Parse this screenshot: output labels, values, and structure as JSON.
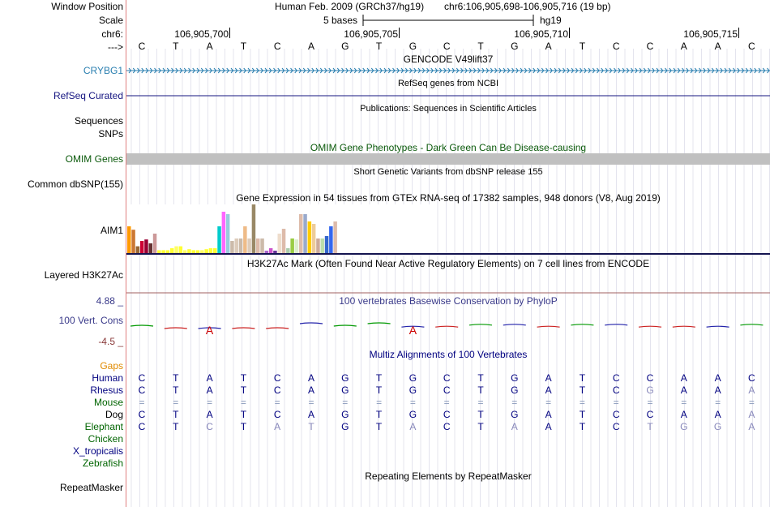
{
  "header": {
    "assembly": "Human Feb. 2009 (GRCh37/hg19)",
    "position": "chr6:106,905,698-106,905,716 (19 bp)",
    "scale_label": "5 bases",
    "scale_db": "hg19",
    "ticks": [
      "106,905,700",
      "106,905,705",
      "106,905,710",
      "106,905,715"
    ]
  },
  "labels": {
    "window_position": "Window Position",
    "scale": "Scale",
    "chrom": "chr6:",
    "strand": "--->",
    "crybg1": "CRYBG1",
    "refseq": "RefSeq Curated",
    "sequences": "Sequences",
    "snps": "SNPs",
    "omim": "OMIM Genes",
    "dbsnp": "Common dbSNP(155)",
    "aim1": "AIM1",
    "h3k27ac": "Layered H3K27Ac",
    "phylop_max": "4.88 _",
    "vert_cons": "100 Vert. Cons",
    "phylop_min": "-4.5 _",
    "gaps": "Gaps",
    "repeatmasker": "RepeatMasker"
  },
  "track_titles": {
    "gencode": "GENCODE V49lift37",
    "refseq": "RefSeq genes from NCBI",
    "publications": "Publications: Sequences in Scientific Articles",
    "omim": "OMIM Gene Phenotypes - Dark Green Can Be Disease-causing",
    "dbsnp": "Short Genetic Variants from dbSNP release 155",
    "gtex": "Gene Expression in 54 tissues from GTEx RNA-seq of 17382 samples, 948 donors (V8, Aug 2019)",
    "h3k27ac": "H3K27Ac Mark (Often Found Near Active Regulatory Elements) on 7 cell lines from ENCODE",
    "phylop": "100 vertebrates Basewise Conservation by PhyloP",
    "multiz": "Multiz Alignments of 100 Vertebrates",
    "repeatmasker": "Repeating Elements by RepeatMasker"
  },
  "reference_sequence": [
    "C",
    "T",
    "A",
    "T",
    "C",
    "A",
    "G",
    "T",
    "G",
    "C",
    "T",
    "G",
    "A",
    "T",
    "C",
    "C",
    "A",
    "A",
    "C"
  ],
  "species": [
    {
      "name": "Human",
      "color": "#000080",
      "bases": [
        "C",
        "T",
        "A",
        "T",
        "C",
        "A",
        "G",
        "T",
        "G",
        "C",
        "T",
        "G",
        "A",
        "T",
        "C",
        "C",
        "A",
        "A",
        "C"
      ],
      "match": [
        1,
        1,
        1,
        1,
        1,
        1,
        1,
        1,
        1,
        1,
        1,
        1,
        1,
        1,
        1,
        1,
        1,
        1,
        1
      ]
    },
    {
      "name": "Rhesus",
      "color": "#000080",
      "bases": [
        "C",
        "T",
        "A",
        "T",
        "C",
        "A",
        "G",
        "T",
        "G",
        "C",
        "T",
        "G",
        "A",
        "T",
        "C",
        "G",
        "A",
        "A",
        "A"
      ],
      "match": [
        1,
        1,
        1,
        1,
        1,
        1,
        1,
        1,
        1,
        1,
        1,
        1,
        1,
        1,
        1,
        0,
        1,
        1,
        0
      ]
    },
    {
      "name": "Mouse",
      "color": "#006400",
      "bases": [
        "=",
        "=",
        "=",
        "=",
        "=",
        "=",
        "=",
        "=",
        "=",
        "=",
        "=",
        "=",
        "=",
        "=",
        "=",
        "=",
        "=",
        "=",
        "="
      ],
      "match": [
        0,
        0,
        0,
        0,
        0,
        0,
        0,
        0,
        0,
        0,
        0,
        0,
        0,
        0,
        0,
        0,
        0,
        0,
        0
      ]
    },
    {
      "name": "Dog",
      "color": "#000000",
      "bases": [
        "C",
        "T",
        "A",
        "T",
        "C",
        "A",
        "G",
        "T",
        "G",
        "C",
        "T",
        "G",
        "A",
        "T",
        "C",
        "C",
        "A",
        "A",
        "A"
      ],
      "match": [
        1,
        1,
        1,
        1,
        1,
        1,
        1,
        1,
        1,
        1,
        1,
        1,
        1,
        1,
        1,
        1,
        1,
        1,
        0
      ]
    },
    {
      "name": "Elephant",
      "color": "#006400",
      "bases": [
        "C",
        "T",
        "C",
        "T",
        "A",
        "T",
        "G",
        "T",
        "A",
        "C",
        "T",
        "A",
        "A",
        "T",
        "C",
        "T",
        "G",
        "G",
        "A"
      ],
      "match": [
        1,
        1,
        0,
        1,
        0,
        0,
        1,
        1,
        0,
        1,
        1,
        0,
        1,
        1,
        1,
        0,
        0,
        0,
        0
      ]
    },
    {
      "name": "Chicken",
      "color": "#006400",
      "bases": [],
      "match": []
    },
    {
      "name": "X_tropicalis",
      "color": "#000080",
      "bases": [],
      "match": []
    },
    {
      "name": "Zebrafish",
      "color": "#006400",
      "bases": [],
      "match": []
    }
  ],
  "gtex_bars": {
    "values": [
      0.55,
      0.48,
      0.14,
      0.25,
      0.28,
      0.2,
      0.4,
      0.06,
      0.06,
      0.06,
      0.1,
      0.14,
      0.14,
      0.06,
      0.08,
      0.06,
      0.06,
      0.06,
      0.08,
      0.1,
      0.1,
      0.55,
      0.85,
      0.8,
      0.25,
      0.3,
      0.3,
      0.55,
      0.3,
      1.0,
      0.3,
      0.3,
      0.05,
      0.1,
      0.05,
      0.4,
      0.5,
      0.1,
      0.3,
      0.28,
      0.8,
      0.8,
      0.65,
      0.6,
      0.3,
      0.3,
      0.35,
      0.55,
      0.65
    ],
    "colors": [
      "#ff9900",
      "#cc7733",
      "#996633",
      "#cc0033",
      "#990033",
      "#663333",
      "#cc9999",
      "#ffff33",
      "#ffff33",
      "#ffff33",
      "#ffff33",
      "#ffff66",
      "#ffff33",
      "#ffff66",
      "#ffff33",
      "#ffff33",
      "#ffff33",
      "#ffff66",
      "#ffff33",
      "#ffff33",
      "#ffff33",
      "#00cccc",
      "#ff66ff",
      "#99ccdd",
      "#ccbbaa",
      "#ddccbb",
      "#ccbbaa",
      "#eebb88",
      "#ddccbb",
      "#998866",
      "#ddbbaa",
      "#ccbbaa",
      "#aa66cc",
      "#cc55cc",
      "#663399",
      "#eeddcc",
      "#ddbbaa",
      "#aaccaa",
      "#99cc44",
      "#ddeecc",
      "#ddbbaa",
      "#99aacc",
      "#ffcc00",
      "#eecc99",
      "#ccaa99",
      "#bbddaa",
      "#3366cc",
      "#3366ee",
      "#ddbbaa"
    ]
  },
  "phylop_values": [
    0.0,
    -0.05,
    -0.05,
    -0.05,
    -0.05,
    0.05,
    0.0,
    0.05,
    -0.02,
    -0.02,
    0.02,
    0.02,
    -0.02,
    0.02,
    0.02,
    -0.02,
    -0.02,
    -0.02,
    0.02
  ]
}
